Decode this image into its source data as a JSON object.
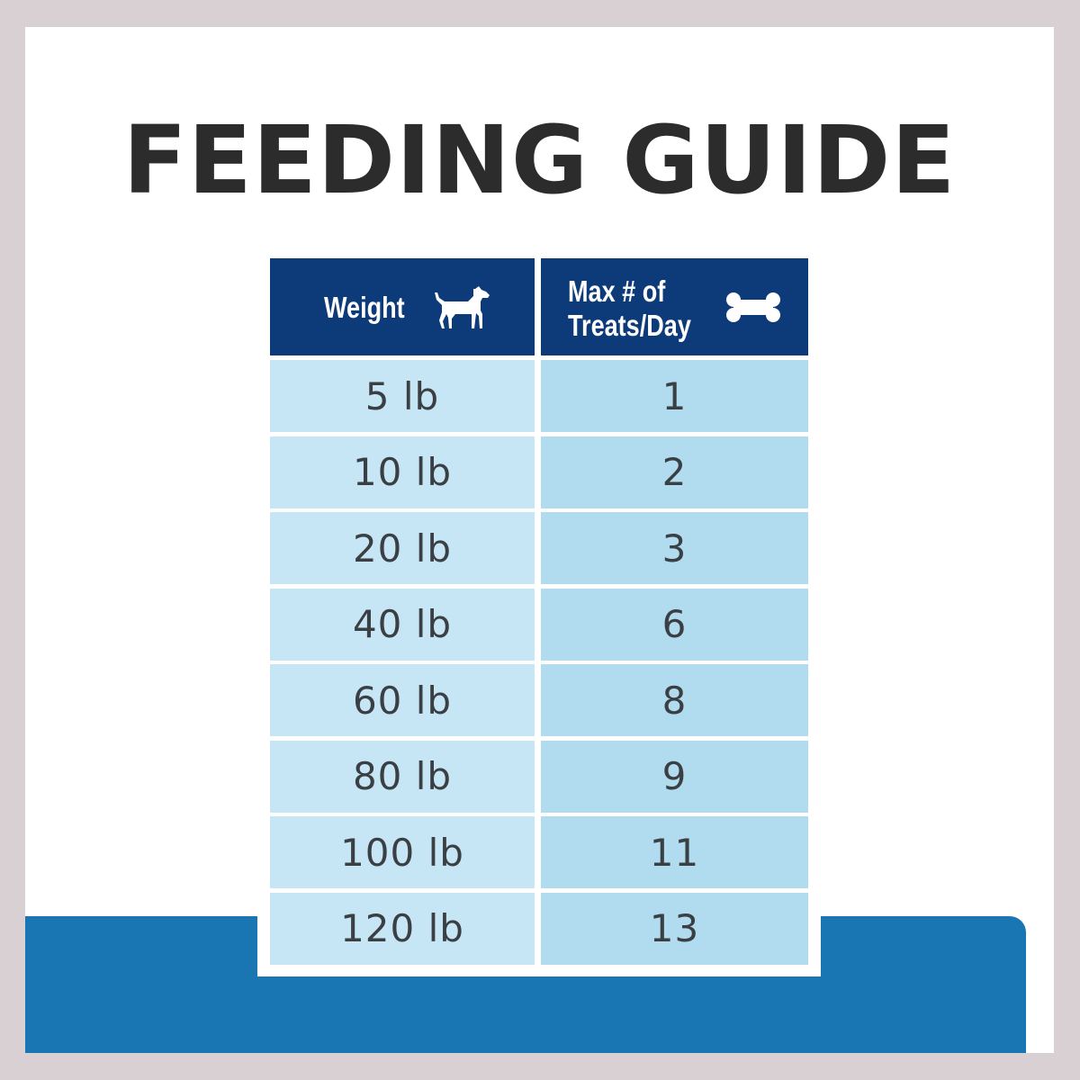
{
  "title": "FEEDING GUIDE",
  "table": {
    "header": {
      "weight_label": "Weight",
      "treats_label": "Max # of Treats/Day",
      "weight_icon": "dog-icon",
      "treats_icon": "bone-icon"
    },
    "rows": [
      {
        "weight": "5 lb",
        "treats": "1"
      },
      {
        "weight": "10 lb",
        "treats": "2"
      },
      {
        "weight": "20 lb",
        "treats": "3"
      },
      {
        "weight": "40 lb",
        "treats": "6"
      },
      {
        "weight": "60 lb",
        "treats": "8"
      },
      {
        "weight": "80 lb",
        "treats": "9"
      },
      {
        "weight": "100 lb",
        "treats": "11"
      },
      {
        "weight": "120 lb",
        "treats": "13"
      }
    ]
  },
  "colors": {
    "header_bg": "#0d3a78",
    "weight_cell_bg": "#c6e5f5",
    "treats_cell_bg": "#b1dcef",
    "band_bg": "#1a76b3",
    "border_bg": "#d8d0d3"
  }
}
